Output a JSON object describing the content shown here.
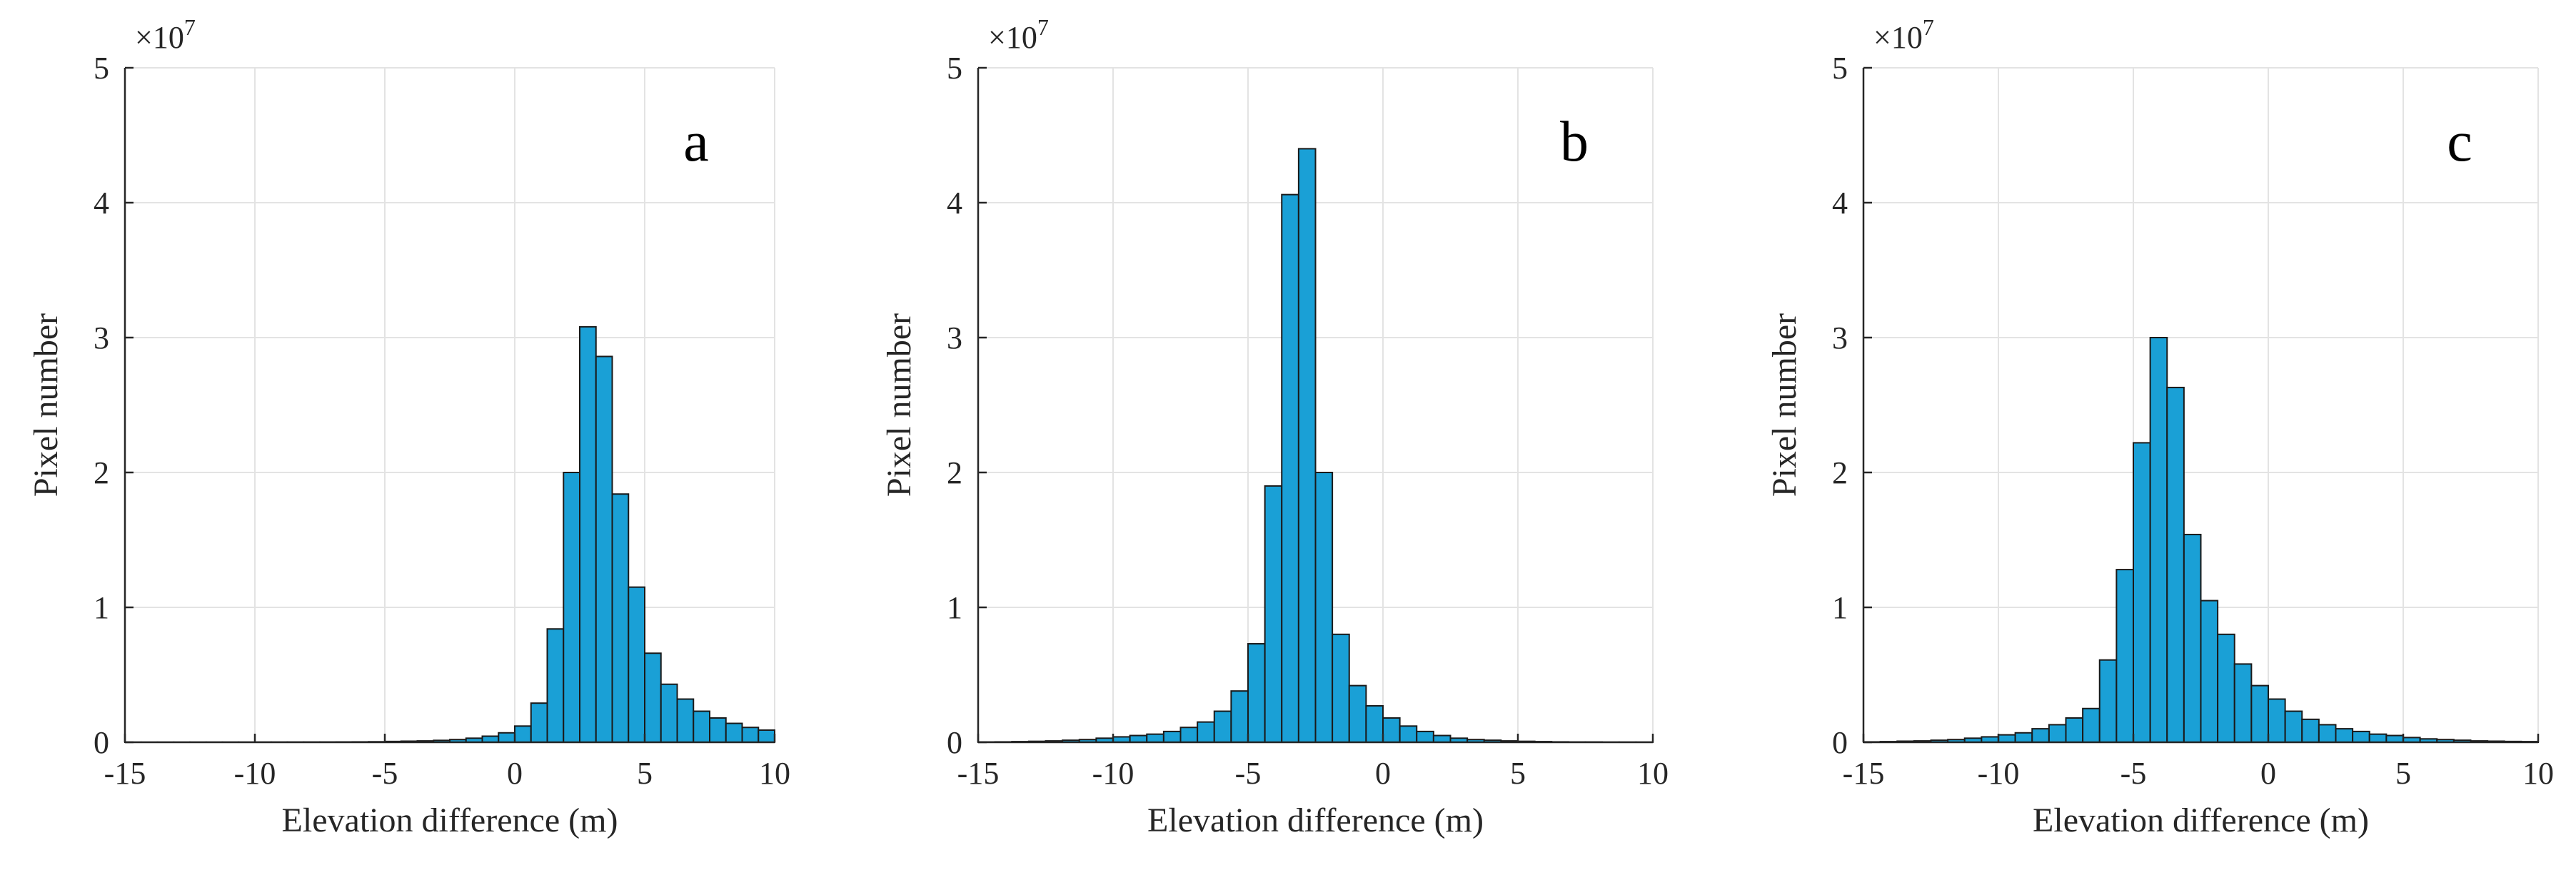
{
  "chart_data": [
    {
      "type": "bar",
      "panel": "a",
      "ylabel": "Pixel number",
      "xlabel": "Elevation difference (m)",
      "xlim": [
        -15,
        10
      ],
      "ylim": [
        0,
        5
      ],
      "y_multiplier": "×10",
      "y_exponent": "7",
      "x_ticks": [
        "-15",
        "-10",
        "-5",
        "0",
        "5",
        "10"
      ],
      "y_ticks": [
        "0",
        "1",
        "2",
        "3",
        "4",
        "5"
      ],
      "bin_width": 0.625,
      "bin_start": -15,
      "values": [
        0.005,
        0.005,
        0.006,
        0.007,
        0.008,
        0.009,
        0.01,
        0.01,
        0.012,
        0.014,
        0.016,
        0.018,
        0.02,
        0.025,
        0.03,
        0.04,
        0.06,
        0.08,
        0.1,
        0.14,
        0.2,
        0.3,
        0.45,
        0.7,
        1.2,
        2.9,
        8.4,
        20.0,
        30.8,
        28.6,
        18.4,
        11.5,
        6.6,
        4.3,
        3.2,
        2.3,
        1.8,
        1.4,
        1.1,
        0.9
      ]
    },
    {
      "type": "bar",
      "panel": "b",
      "ylabel": "Pixel number",
      "xlabel": "Elevation difference (m)",
      "xlim": [
        -15,
        10
      ],
      "ylim": [
        0,
        5
      ],
      "y_multiplier": "×10",
      "y_exponent": "7",
      "x_ticks": [
        "-15",
        "-10",
        "-5",
        "0",
        "5",
        "10"
      ],
      "y_ticks": [
        "0",
        "1",
        "2",
        "3",
        "4",
        "5"
      ],
      "bin_width": 0.625,
      "bin_start": -15,
      "values": [
        0.02,
        0.03,
        0.05,
        0.07,
        0.1,
        0.15,
        0.2,
        0.3,
        0.4,
        0.5,
        0.6,
        0.8,
        1.1,
        1.5,
        2.3,
        3.8,
        7.3,
        19.0,
        40.6,
        44.0,
        20.0,
        8.0,
        4.2,
        2.7,
        1.8,
        1.2,
        0.8,
        0.5,
        0.3,
        0.2,
        0.15,
        0.1,
        0.07,
        0.05,
        0.03,
        0.02,
        0.02,
        0.01,
        0.01,
        0.01
      ]
    },
    {
      "type": "bar",
      "panel": "c",
      "ylabel": "Pixel number",
      "xlabel": "Elevation difference (m)",
      "xlim": [
        -15,
        10
      ],
      "ylim": [
        0,
        5
      ],
      "y_multiplier": "×10",
      "y_exponent": "7",
      "x_ticks": [
        "-15",
        "-10",
        "-5",
        "0",
        "5",
        "10"
      ],
      "y_ticks": [
        "0",
        "1",
        "2",
        "3",
        "4",
        "5"
      ],
      "bin_width": 0.625,
      "bin_start": -15,
      "values": [
        0.03,
        0.05,
        0.08,
        0.1,
        0.15,
        0.2,
        0.3,
        0.4,
        0.55,
        0.7,
        1.0,
        1.3,
        1.8,
        2.5,
        6.1,
        12.8,
        22.2,
        30.0,
        26.3,
        15.4,
        10.5,
        8.0,
        5.8,
        4.2,
        3.2,
        2.3,
        1.7,
        1.3,
        1.0,
        0.8,
        0.6,
        0.5,
        0.35,
        0.25,
        0.2,
        0.15,
        0.1,
        0.08,
        0.06,
        0.05
      ]
    }
  ],
  "bar_color": "#1aa0d6",
  "grid_color": "#e3e3e3"
}
